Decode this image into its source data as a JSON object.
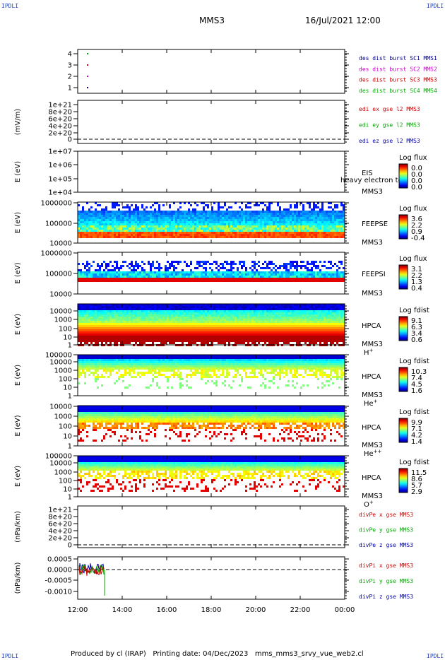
{
  "header": {
    "title": "MMS3",
    "datetime": "16/Jul/2021 12:00",
    "corner_tl": "IPDLI",
    "corner_tr": "IPDLI",
    "corner_bl": "IPDLI",
    "corner_br": "IPDLI"
  },
  "footer": {
    "text": "Produced by cl (IRAP)   Printing date: 04/Dec/2023   mms_mms3_srvy_vue_web2.cl"
  },
  "chart_data": {
    "type": "stacked_panels",
    "x": {
      "ticks": [
        "12:00",
        "14:00",
        "16:00",
        "18:00",
        "20:00",
        "22:00",
        "00:00"
      ]
    },
    "panels": [
      {
        "id": "p1",
        "type": "scatter",
        "ticks": [
          "4",
          "3",
          "2",
          "1"
        ],
        "series": [
          {
            "name": "des dist burst SC1 MMS1",
            "color": "#00008b",
            "y": 1
          },
          {
            "name": "des dist burst SC2 MMS2",
            "color": "#cc00cc",
            "y": 2
          },
          {
            "name": "des dist burst SC3 MMS3",
            "color": "#cc0000",
            "y": 3
          },
          {
            "name": "des dist burst SC4 MMS4",
            "color": "#00aa00",
            "y": 4
          }
        ]
      },
      {
        "id": "p2",
        "type": "line",
        "ylabel": "(mV/m)",
        "ticks": [
          "1e+21",
          "8e+20",
          "6e+20",
          "4e+20",
          "2e+20",
          "0"
        ],
        "series": [
          {
            "name": "edi ex gse l2 MMS3",
            "color": "#cc0000"
          },
          {
            "name": "edi ey gse l2 MMS3",
            "color": "#00aa00"
          },
          {
            "name": "edi ez gse l2 MMS3",
            "color": "#0000aa"
          }
        ]
      },
      {
        "id": "p3",
        "type": "heatmap",
        "ylabel": "E (eV)",
        "ticks": [
          "1e+07",
          "1e+06",
          "1e+05",
          "1e+04"
        ],
        "instrument": "EIS",
        "species_text": "heavy electron to",
        "spacecraft": "MMS3",
        "colorbar": {
          "title": "Log flux",
          "ticks": [
            "0.0",
            "0.0",
            "0.0",
            "0.0"
          ]
        }
      },
      {
        "id": "p4",
        "type": "heatmap",
        "ylabel": "E (eV)",
        "ticks": [
          "1000000",
          "100000",
          "10000"
        ],
        "instrument": "FEEPSE",
        "spacecraft": "MMS3",
        "colorbar": {
          "title": "Log flux",
          "ticks": [
            "3.6",
            "2.2",
            "0.9",
            "-0.4"
          ]
        }
      },
      {
        "id": "p5",
        "type": "heatmap",
        "ylabel": "E (eV)",
        "ticks": [
          "1000000",
          "100000",
          "10000"
        ],
        "instrument": "FEEPSI",
        "spacecraft": "MMS3",
        "colorbar": {
          "title": "Log flux",
          "ticks": [
            "3.1",
            "2.2",
            "1.3",
            "0.4"
          ]
        }
      },
      {
        "id": "p6",
        "type": "heatmap",
        "ylabel": "E (eV)",
        "ticks": [
          "10000",
          "1000",
          "100",
          "10",
          "1"
        ],
        "instrument": "HPCA",
        "spacecraft": "MMS3",
        "species": "H",
        "charge": "+",
        "colorbar": {
          "title": "Log fdist",
          "ticks": [
            "9.1",
            "6.3",
            "3.4",
            "0.6"
          ]
        }
      },
      {
        "id": "p7",
        "type": "heatmap",
        "ylabel": "E (eV)",
        "ticks": [
          "100000",
          "10000",
          "1000",
          "100",
          "10",
          "1"
        ],
        "instrument": "HPCA",
        "spacecraft": "MMS3",
        "species": "He",
        "charge": "+",
        "colorbar": {
          "title": "Log fdist",
          "ticks": [
            "10.3",
            "7.4",
            "4.5",
            "1.6"
          ]
        }
      },
      {
        "id": "p8",
        "type": "heatmap",
        "ylabel": "E (eV)",
        "ticks": [
          "10000",
          "1000",
          "100",
          "10",
          "1"
        ],
        "instrument": "HPCA",
        "spacecraft": "MMS3",
        "species": "He",
        "charge": "++",
        "colorbar": {
          "title": "Log fdist",
          "ticks": [
            "9.9",
            "7.1",
            "4.2",
            "1.4"
          ]
        }
      },
      {
        "id": "p9",
        "type": "heatmap",
        "ylabel": "E (eV)",
        "ticks": [
          "100000",
          "10000",
          "1000",
          "100",
          "10",
          "1"
        ],
        "instrument": "HPCA",
        "spacecraft": "MMS3",
        "species": "O",
        "charge": "+",
        "colorbar": {
          "title": "Log fdist",
          "ticks": [
            "11.5",
            "8.6",
            "5.7",
            "2.9"
          ]
        }
      },
      {
        "id": "p10",
        "type": "line",
        "ylabel": "(nPa/km)",
        "ticks": [
          "1e+21",
          "8e+20",
          "6e+20",
          "4e+20",
          "2e+20",
          "0"
        ],
        "series": [
          {
            "name": "divPe x gse MMS3",
            "color": "#cc0000"
          },
          {
            "name": "divPe y gse MMS3",
            "color": "#00aa00"
          },
          {
            "name": "divPe z gse MMS3",
            "color": "#0000aa"
          }
        ]
      },
      {
        "id": "p11",
        "type": "line",
        "ylabel": "(nPa/km)",
        "ticks": [
          "0.0005",
          "0.0000",
          "-0.0005",
          "-0.0010"
        ],
        "series": [
          {
            "name": "divPi x gse MMS3",
            "color": "#cc0000"
          },
          {
            "name": "divPi y gse MMS3",
            "color": "#00aa00"
          },
          {
            "name": "divPi z gse MMS3",
            "color": "#0000aa"
          }
        ]
      }
    ]
  }
}
